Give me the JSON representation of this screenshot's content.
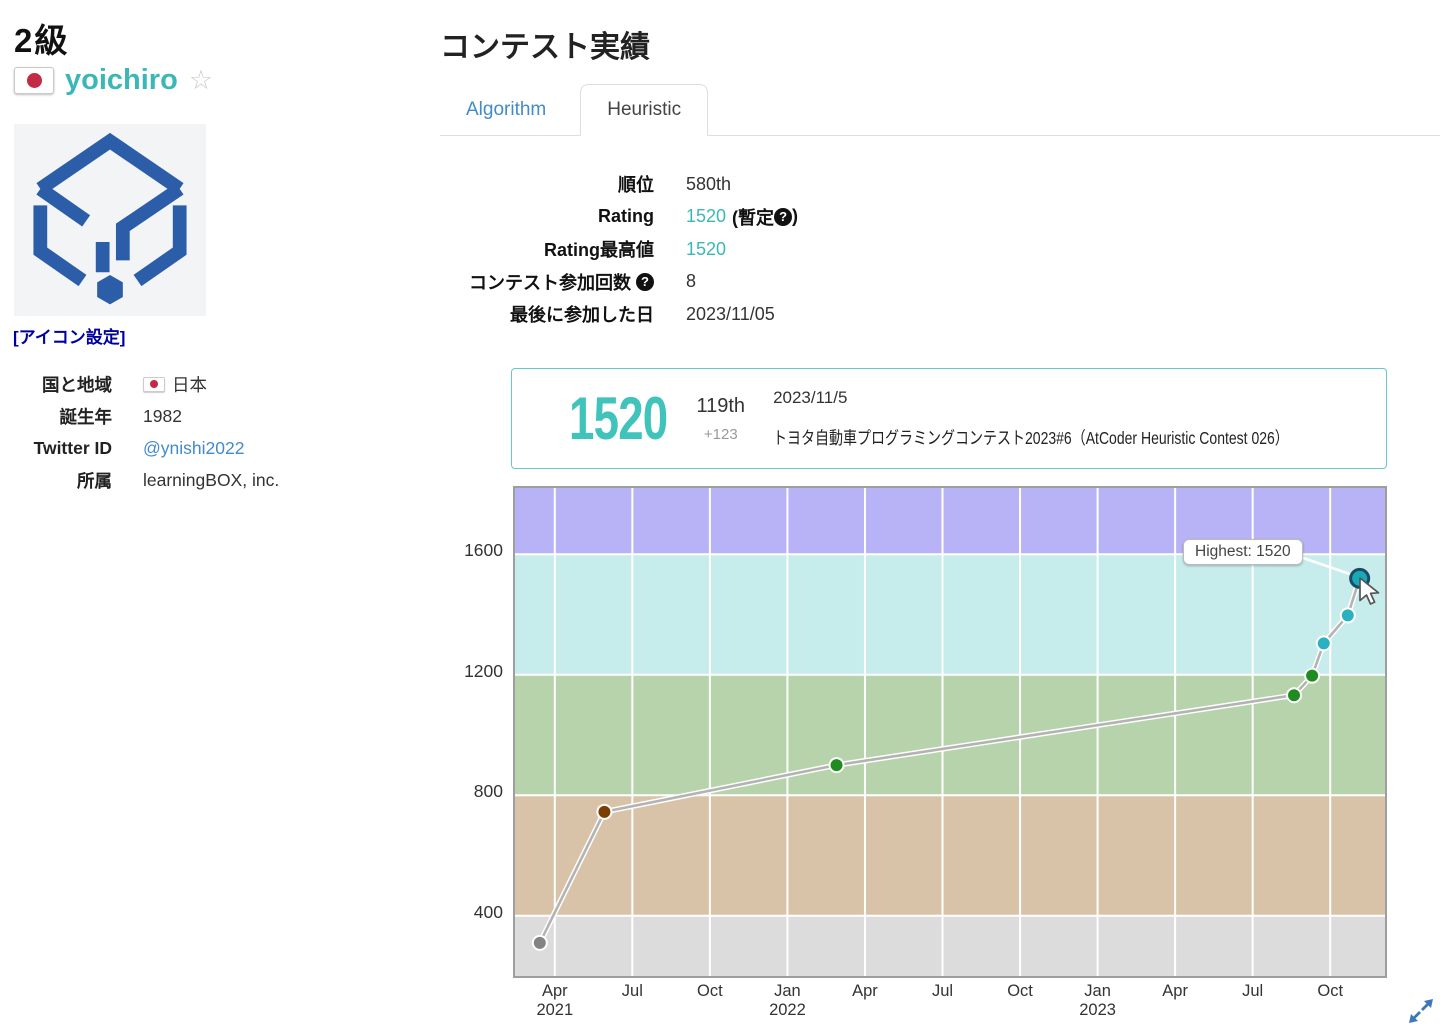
{
  "profile": {
    "rank_class": "2級",
    "username": "yoichiro",
    "star": "☆",
    "icon_setting_link": "[アイコン設定]",
    "fields": {
      "country_label": "国と地域",
      "country": "日本",
      "birth_label": "誕生年",
      "birth": "1982",
      "twitter_label": "Twitter ID",
      "twitter": "@ynishi2022",
      "affiliation_label": "所属",
      "affiliation": "learningBOX, inc."
    }
  },
  "contest": {
    "title": "コンテスト実績",
    "tabs": {
      "algorithm": "Algorithm",
      "heuristic": "Heuristic"
    },
    "stats": {
      "rank_label": "順位",
      "rank": "580th",
      "rating_label": "Rating",
      "rating": "1520",
      "rating_note_open": "(暫定",
      "rating_note_close": ")",
      "qmark": "?",
      "highest_label": "Rating最高値",
      "highest": "1520",
      "count_label": "コンテスト参加回数",
      "count": "8",
      "last_label": "最後に参加した日",
      "last": "2023/11/05"
    },
    "highlight": {
      "rating": "1520",
      "place": "119th",
      "diff": "+123",
      "date": "2023/11/5",
      "contest": "トヨタ自動車プログラミングコンテスト2023#6（AtCoder Heuristic Contest 026）"
    }
  },
  "colors": {
    "accent_teal": "#3cb7b7",
    "link_blue": "#428bca",
    "box_border_teal": "#6ac7c7"
  },
  "chart_data": {
    "type": "line",
    "title": "AtCoder Heuristic rating history",
    "tooltip": "Highest: 1520",
    "x_unit": "months since 2021-01",
    "xlim": [
      1.46,
      35.12
    ],
    "ylim": [
      200,
      1820
    ],
    "grid": true,
    "legend": false,
    "y_ticks": [
      400,
      800,
      1200,
      1600
    ],
    "x_ticks": [
      {
        "m": 3,
        "month": "Apr",
        "year": "2021"
      },
      {
        "m": 6,
        "month": "Jul"
      },
      {
        "m": 9,
        "month": "Oct"
      },
      {
        "m": 12,
        "month": "Jan",
        "year": "2022"
      },
      {
        "m": 15,
        "month": "Apr"
      },
      {
        "m": 18,
        "month": "Jul"
      },
      {
        "m": 21,
        "month": "Oct"
      },
      {
        "m": 24,
        "month": "Jan",
        "year": "2023"
      },
      {
        "m": 27,
        "month": "Apr"
      },
      {
        "m": 30,
        "month": "Jul"
      },
      {
        "m": 33,
        "month": "Oct"
      }
    ],
    "bands": [
      {
        "min": 200,
        "max": 400,
        "fill": "#dcdcdc",
        "point": "#838383"
      },
      {
        "min": 400,
        "max": 800,
        "fill": "#d9c3a8",
        "point": "#7a3f00"
      },
      {
        "min": 800,
        "max": 1200,
        "fill": "#b7d3ab",
        "point": "#1f8c1f"
      },
      {
        "min": 1200,
        "max": 1600,
        "fill": "#c7ecec",
        "point": "#2bb0c2"
      },
      {
        "min": 1600,
        "max": 1820,
        "fill": "#b8b2f6",
        "point": "#8a7af0"
      }
    ],
    "points": [
      {
        "m": 2.42,
        "date": "2021-03",
        "rating": 310
      },
      {
        "m": 4.92,
        "date": "2021-06",
        "rating": 745
      },
      {
        "m": 13.9,
        "date": "2022-03",
        "rating": 900
      },
      {
        "m": 31.6,
        "date": "2023-08",
        "rating": 1132
      },
      {
        "m": 32.3,
        "date": "2023-09",
        "rating": 1197
      },
      {
        "m": 32.75,
        "date": "2023-10",
        "rating": 1304
      },
      {
        "m": 33.68,
        "date": "2023-10",
        "rating": 1397
      },
      {
        "m": 34.14,
        "date": "2023-11",
        "rating": 1520,
        "highlight": true
      }
    ]
  }
}
